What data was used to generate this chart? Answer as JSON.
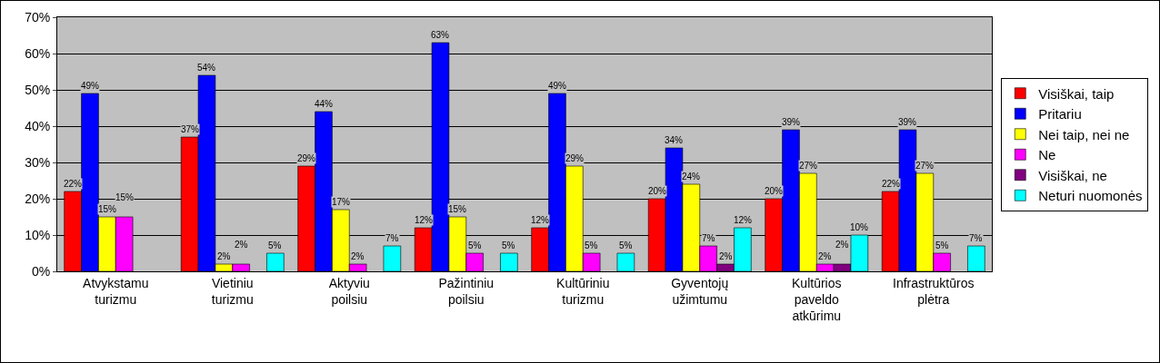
{
  "chart_data": {
    "type": "bar",
    "categories": [
      "Atvykstamu turizmu",
      "Vietiniu turizmu",
      "Aktyviu poilsiu",
      "Pažintiniu poilsiu",
      "Kultūriniu turizmu",
      "Gyventojų užimtumu",
      "Kultūrios paveldo atkūrimu",
      "Infrastruktūros plėtra"
    ],
    "series": [
      {
        "name": "Visiškai, taip",
        "color": "#ff0000",
        "values": [
          22,
          37,
          29,
          12,
          12,
          20,
          20,
          22
        ],
        "value_labels": [
          "22%",
          "37%",
          "29%",
          "12%",
          "12%",
          "20%",
          "20%",
          "22%"
        ]
      },
      {
        "name": "Pritariu",
        "color": "#0000ff",
        "values": [
          49,
          54,
          44,
          63,
          49,
          34,
          39,
          39
        ],
        "value_labels": [
          "49%",
          "54%",
          "44%",
          "63%",
          "49%",
          "34%",
          "39%",
          "39%"
        ]
      },
      {
        "name": "Nei taip, nei ne",
        "color": "#ffff00",
        "values": [
          15,
          2,
          17,
          15,
          29,
          24,
          27,
          27
        ],
        "value_labels": [
          "15%",
          "2%",
          "17%",
          "15%",
          "29%",
          "24%",
          "27%",
          "27%"
        ]
      },
      {
        "name": "Ne",
        "color": "#ff00ff",
        "values": [
          15,
          2,
          2,
          5,
          5,
          7,
          2,
          5
        ],
        "value_labels": [
          "15%",
          "2%",
          "2%",
          "5%",
          "5%",
          "7%",
          "2%",
          "5%"
        ]
      },
      {
        "name": "Visiškai, ne",
        "color": "#800080",
        "values": [
          null,
          null,
          null,
          null,
          null,
          2,
          2,
          null
        ],
        "value_labels": [
          null,
          null,
          null,
          null,
          null,
          "2%",
          "2%",
          null
        ]
      },
      {
        "name": "Neturi nuomonės",
        "color": "#00ffff",
        "values": [
          null,
          5,
          7,
          5,
          5,
          12,
          10,
          7
        ],
        "value_labels": [
          null,
          "5%",
          "7%",
          "5%",
          "5%",
          "12%",
          "10%",
          "7%"
        ]
      }
    ],
    "ylim": [
      0,
      70
    ],
    "yticks": [
      {
        "value": 0,
        "label": "0%"
      },
      {
        "value": 10,
        "label": "10%"
      },
      {
        "value": 20,
        "label": "20%"
      },
      {
        "value": 30,
        "label": "30%"
      },
      {
        "value": 40,
        "label": "40%"
      },
      {
        "value": 50,
        "label": "50%"
      },
      {
        "value": 60,
        "label": "60%"
      },
      {
        "value": 70,
        "label": "70%"
      }
    ],
    "grid": "y",
    "legend": "right"
  }
}
